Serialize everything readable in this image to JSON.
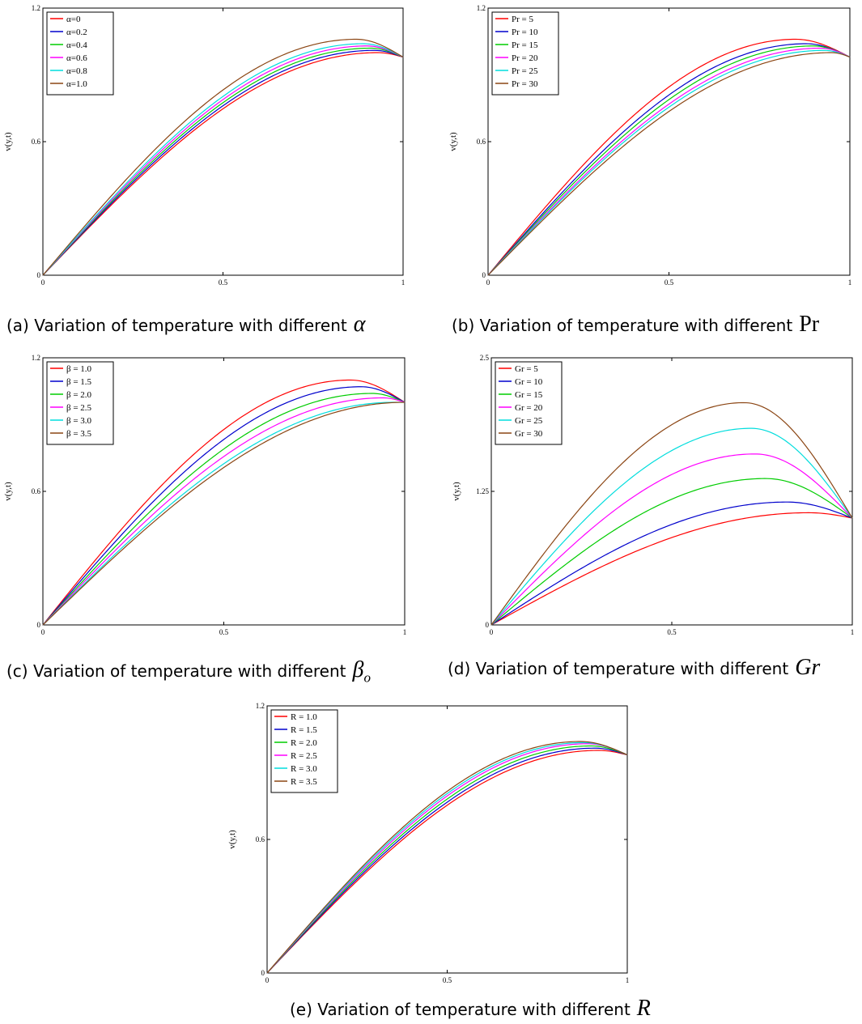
{
  "charts": [
    {
      "id": "a",
      "caption_text": "(a) Variation of temperature with different",
      "caption_symbol": "α",
      "caption_symbol_sub": "",
      "chart_data": {
        "type": "line",
        "ylabel": "v(y,t)",
        "xlim": [
          0,
          1
        ],
        "ylim": [
          0,
          1.2
        ],
        "xticks": [
          0,
          0.5,
          1
        ],
        "yticks": [
          0,
          0.6,
          1.2
        ],
        "xtick_labels": [
          "0",
          "0.5",
          "1"
        ],
        "ytick_labels": [
          "0",
          "0.6",
          "1.2"
        ],
        "legend_position": "top-left",
        "grid": false,
        "end_value": 0.98,
        "series": [
          {
            "name": "α=0",
            "color": "#ff0000",
            "peak_x": 0.93,
            "peak_y": 1.0
          },
          {
            "name": "α=0.2",
            "color": "#0000cc",
            "peak_x": 0.92,
            "peak_y": 1.01
          },
          {
            "name": "α=0.4",
            "color": "#00cc00",
            "peak_x": 0.91,
            "peak_y": 1.02
          },
          {
            "name": "α=0.6",
            "color": "#ff00ff",
            "peak_x": 0.9,
            "peak_y": 1.03
          },
          {
            "name": "α=0.8",
            "color": "#00dddd",
            "peak_x": 0.89,
            "peak_y": 1.04
          },
          {
            "name": "α=1.0",
            "color": "#8b4513",
            "peak_x": 0.87,
            "peak_y": 1.06
          }
        ]
      }
    },
    {
      "id": "b",
      "caption_text": "(b) Variation of temperature with different",
      "caption_symbol": "Pr",
      "caption_symbol_sub": "",
      "chart_data": {
        "type": "line",
        "ylabel": "v(y,t)",
        "xlim": [
          0,
          1
        ],
        "ylim": [
          0,
          1.2
        ],
        "xticks": [
          0,
          0.5,
          1
        ],
        "yticks": [
          0,
          0.6,
          1.2
        ],
        "xtick_labels": [
          "0",
          "0.5",
          "1"
        ],
        "ytick_labels": [
          "0",
          "0.6",
          "1.2"
        ],
        "legend_position": "top-left",
        "grid": false,
        "end_value": 0.98,
        "series": [
          {
            "name": "Pr = 5",
            "color": "#ff0000",
            "peak_x": 0.85,
            "peak_y": 1.06
          },
          {
            "name": "Pr = 10",
            "color": "#0000cc",
            "peak_x": 0.88,
            "peak_y": 1.04
          },
          {
            "name": "Pr = 15",
            "color": "#00cc00",
            "peak_x": 0.9,
            "peak_y": 1.03
          },
          {
            "name": "Pr = 20",
            "color": "#ff00ff",
            "peak_x": 0.92,
            "peak_y": 1.02
          },
          {
            "name": "Pr = 25",
            "color": "#00dddd",
            "peak_x": 0.93,
            "peak_y": 1.01
          },
          {
            "name": "Pr = 30",
            "color": "#8b4513",
            "peak_x": 0.95,
            "peak_y": 1.0
          }
        ]
      }
    },
    {
      "id": "c",
      "caption_text": "(c) Variation of temperature with different",
      "caption_symbol": "β",
      "caption_symbol_sub": "o",
      "chart_data": {
        "type": "line",
        "ylabel": "v(y,t)",
        "xlim": [
          0,
          1
        ],
        "ylim": [
          0,
          1.2
        ],
        "xticks": [
          0,
          0.5,
          1
        ],
        "yticks": [
          0,
          0.6,
          1.2
        ],
        "xtick_labels": [
          "0",
          "0.5",
          "1"
        ],
        "ytick_labels": [
          "0",
          "0.6",
          "1.2"
        ],
        "legend_position": "top-left",
        "grid": false,
        "end_value": 1.0,
        "series": [
          {
            "name": "β = 1.0",
            "color": "#ff0000",
            "peak_x": 0.85,
            "peak_y": 1.1
          },
          {
            "name": "β = 1.5",
            "color": "#0000cc",
            "peak_x": 0.88,
            "peak_y": 1.07
          },
          {
            "name": "β = 2.0",
            "color": "#00cc00",
            "peak_x": 0.91,
            "peak_y": 1.04
          },
          {
            "name": "β = 2.5",
            "color": "#ff00ff",
            "peak_x": 0.94,
            "peak_y": 1.02
          },
          {
            "name": "β = 3.0",
            "color": "#00dddd",
            "peak_x": 0.97,
            "peak_y": 1.0
          },
          {
            "name": "β = 3.5",
            "color": "#8b4513",
            "peak_x": 1.0,
            "peak_y": 1.0
          }
        ]
      }
    },
    {
      "id": "d",
      "caption_text": "(d) Variation of temperature with different",
      "caption_symbol": "Gr",
      "caption_symbol_sub": "",
      "chart_data": {
        "type": "line",
        "ylabel": "v(y,t)",
        "xlim": [
          0,
          1
        ],
        "ylim": [
          0,
          2.5
        ],
        "xticks": [
          0,
          0.5,
          1
        ],
        "yticks": [
          0,
          1.25,
          2.5
        ],
        "xtick_labels": [
          "0",
          "0.5",
          "1"
        ],
        "ytick_labels": [
          "0",
          "1.25",
          "2.5"
        ],
        "legend_position": "top-left",
        "grid": false,
        "end_value": 1.0,
        "series": [
          {
            "name": "Gr = 5",
            "color": "#ff0000",
            "peak_x": 0.88,
            "peak_y": 1.05
          },
          {
            "name": "Gr = 10",
            "color": "#0000cc",
            "peak_x": 0.82,
            "peak_y": 1.15
          },
          {
            "name": "Gr = 15",
            "color": "#00cc00",
            "peak_x": 0.76,
            "peak_y": 1.37
          },
          {
            "name": "Gr = 20",
            "color": "#ff00ff",
            "peak_x": 0.73,
            "peak_y": 1.6
          },
          {
            "name": "Gr = 25",
            "color": "#00dddd",
            "peak_x": 0.72,
            "peak_y": 1.84
          },
          {
            "name": "Gr = 30",
            "color": "#8b4513",
            "peak_x": 0.7,
            "peak_y": 2.08
          }
        ]
      }
    },
    {
      "id": "e",
      "caption_text": "(e) Variation of temperature with different",
      "caption_symbol": "R",
      "caption_symbol_sub": "",
      "chart_data": {
        "type": "line",
        "ylabel": "v(y,t)",
        "xlim": [
          0,
          1
        ],
        "ylim": [
          0,
          1.2
        ],
        "xticks": [
          0,
          0.5,
          1
        ],
        "yticks": [
          0,
          0.6,
          1.2
        ],
        "xtick_labels": [
          "0",
          "0.5",
          "1"
        ],
        "ytick_labels": [
          "0",
          "0.6",
          "1.2"
        ],
        "legend_position": "top-left",
        "grid": false,
        "end_value": 0.98,
        "series": [
          {
            "name": "R = 1.0",
            "color": "#ff0000",
            "peak_x": 0.92,
            "peak_y": 1.0
          },
          {
            "name": "R = 1.5",
            "color": "#0000cc",
            "peak_x": 0.91,
            "peak_y": 1.01
          },
          {
            "name": "R = 2.0",
            "color": "#00cc00",
            "peak_x": 0.9,
            "peak_y": 1.02
          },
          {
            "name": "R = 2.5",
            "color": "#ff00ff",
            "peak_x": 0.89,
            "peak_y": 1.03
          },
          {
            "name": "R = 3.0",
            "color": "#00dddd",
            "peak_x": 0.88,
            "peak_y": 1.035
          },
          {
            "name": "R = 3.5",
            "color": "#8b4513",
            "peak_x": 0.87,
            "peak_y": 1.04
          }
        ]
      }
    }
  ]
}
